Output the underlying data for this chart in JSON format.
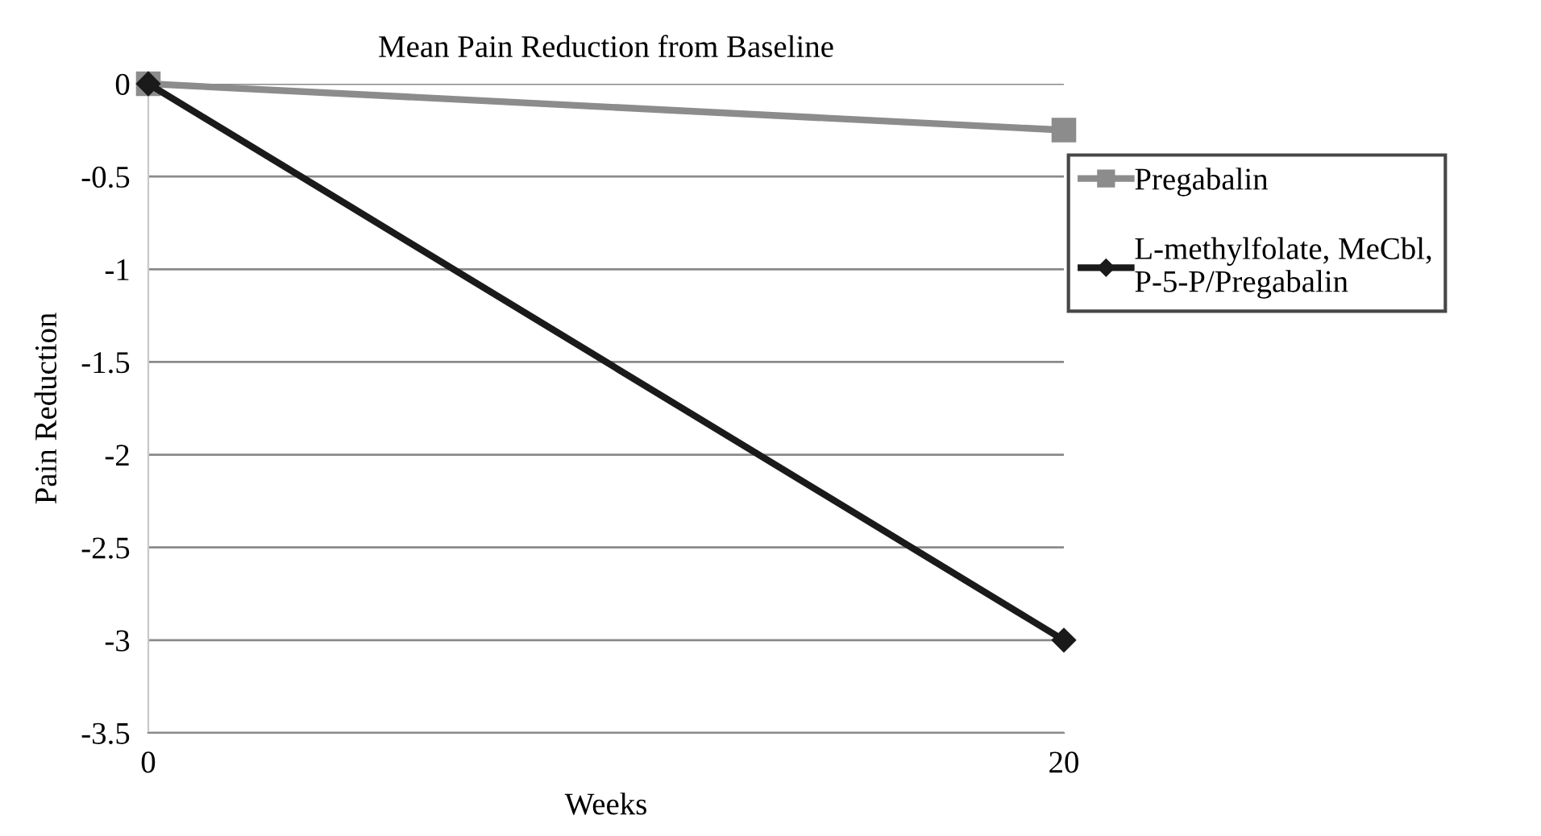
{
  "chart_data": {
    "type": "line",
    "title": "Mean Pain Reduction from Baseline",
    "xlabel": "Weeks",
    "ylabel": "Pain Reduction",
    "x": [
      0,
      20
    ],
    "series": [
      {
        "name": "Pregabalin",
        "color": "#8c8c8c",
        "values": [
          0,
          -0.25
        ],
        "marker": "square"
      },
      {
        "name": "L-methylfolate, MeCbl,\nP-5-P/Pregabalin",
        "color": "#1a1a1a",
        "values": [
          0,
          -3
        ],
        "marker": "diamond"
      }
    ],
    "xlim": [
      0,
      20
    ],
    "xticks": [
      0,
      20
    ],
    "ylim": [
      -3.5,
      0
    ],
    "yticks": [
      0,
      -0.5,
      -1,
      -1.5,
      -2,
      -2.5,
      -3,
      -3.5
    ],
    "grid": "y",
    "legend": "right",
    "line_style": "solid"
  }
}
